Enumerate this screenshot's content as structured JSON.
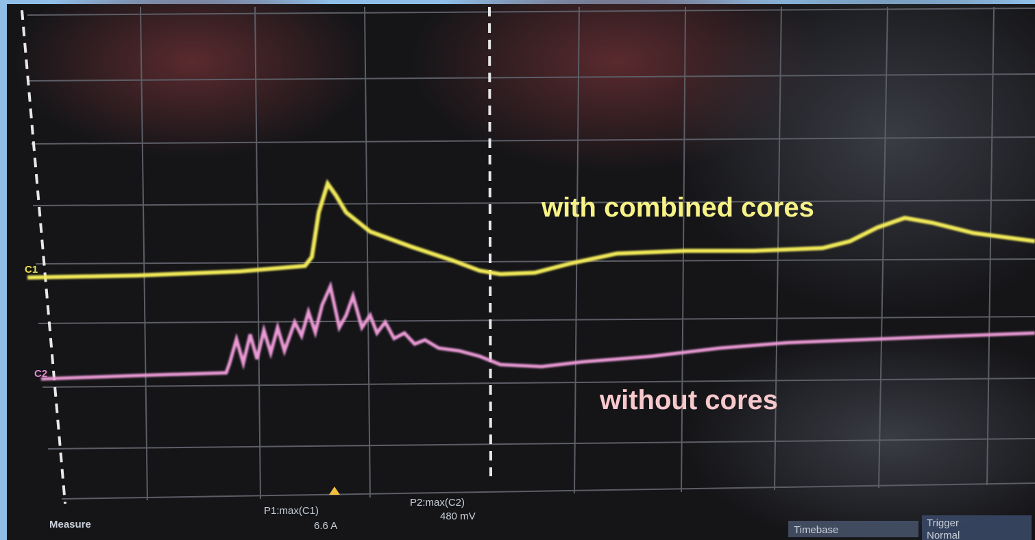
{
  "channels": {
    "c1": "C1",
    "c2": "C2"
  },
  "annotations": {
    "top_trace": "with combined cores",
    "bottom_trace": "without cores"
  },
  "footer": {
    "measure": "Measure",
    "p1": {
      "label": "P1:max(C1)",
      "value": "6.6 A"
    },
    "p2": {
      "label": "P2:max(C2)",
      "value": "480 mV"
    },
    "timebase": "Timebase",
    "trigger": "Trigger",
    "trigger_mode": "Normal"
  }
}
